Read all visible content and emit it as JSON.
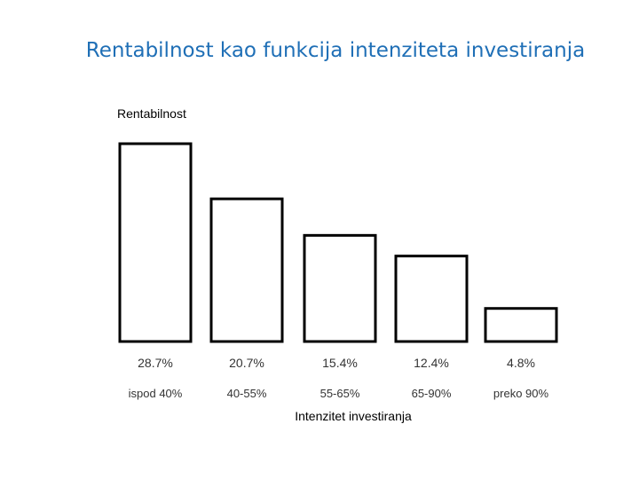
{
  "title": "Rentabilnost kao funkcija intenziteta investiranja",
  "colors": {
    "title": "#1f6fb6",
    "bar_fill": "#ffffff",
    "bar_stroke": "#000000",
    "text": "#333333"
  },
  "chart_data": {
    "type": "bar",
    "title": "Rentabilnost kao funkcija intenziteta investiranja",
    "ylabel": "Rentabilnost",
    "xlabel": "Intenzitet investiranja",
    "categories": [
      "ispod 40%",
      "40-55%",
      "55-65%",
      "65-90%",
      "preko 90%"
    ],
    "values": [
      28.7,
      20.7,
      15.4,
      12.4,
      4.8
    ],
    "data_labels": [
      "28.7%",
      "20.7%",
      "15.4%",
      "12.4%",
      "4.8%"
    ],
    "ylim": [
      0,
      28.7
    ],
    "grid": false,
    "legend": "none"
  }
}
